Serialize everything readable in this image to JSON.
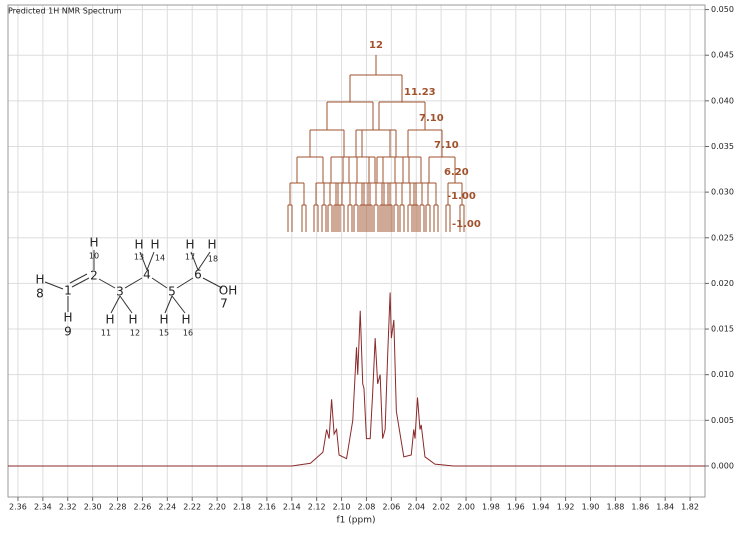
{
  "chart_data": {
    "type": "line",
    "title": "Predicted 1H NMR Spectrum",
    "x_label": "f1 (ppm)",
    "x": [
      2.368,
      2.14,
      2.125,
      2.115,
      2.112,
      2.11,
      2.108,
      2.106,
      2.104,
      2.102,
      2.096,
      2.091,
      2.088,
      2.087,
      2.085,
      2.083,
      2.082,
      2.08,
      2.077,
      2.075,
      2.073,
      2.071,
      2.069,
      2.067,
      2.065,
      2.063,
      2.061,
      2.06,
      2.058,
      2.056,
      2.05,
      2.044,
      2.042,
      2.041,
      2.039,
      2.037,
      2.036,
      2.033,
      2.025,
      2.01,
      1.808
    ],
    "series": [
      {
        "color": "#8b2a2a",
        "values": [
          0,
          0,
          0.0003,
          0.0015,
          0.004,
          0.003,
          0.0073,
          0.0035,
          0.004,
          0.0012,
          0.0008,
          0.005,
          0.013,
          0.01,
          0.017,
          0.009,
          0.0085,
          0.003,
          0.003,
          0.008,
          0.014,
          0.009,
          0.01,
          0.003,
          0.004,
          0.012,
          0.019,
          0.014,
          0.016,
          0.006,
          0.001,
          0.0012,
          0.004,
          0.003,
          0.0075,
          0.004,
          0.0045,
          0.001,
          0.0002,
          0,
          0
        ]
      }
    ],
    "xlim": [
      2.368,
      1.808
    ],
    "ylim": [
      -0.0034,
      0.0505
    ],
    "xticks": [
      2.36,
      2.34,
      2.32,
      {
        "value": 2.3,
        "label": "2.30"
      },
      2.28,
      2.26,
      2.24,
      2.22,
      {
        "value": 2.2,
        "label": "2.20"
      },
      2.18,
      2.16,
      2.14,
      2.12,
      {
        "value": 2.1,
        "label": "2.10"
      },
      2.08,
      2.06,
      2.04,
      2.02,
      {
        "value": 2.0,
        "label": "2.00"
      },
      1.98,
      1.96,
      1.94,
      1.92,
      {
        "value": 1.9,
        "label": "1.90"
      },
      1.88,
      1.86,
      1.84,
      1.82
    ],
    "yticks": [
      {
        "value": 0,
        "label": "0.000"
      },
      {
        "value": 0.005,
        "label": "0.005"
      },
      {
        "value": 0.01,
        "label": "0.010"
      },
      {
        "value": 0.015,
        "label": "0.015"
      },
      {
        "value": 0.02,
        "label": "0.020"
      },
      {
        "value": 0.025,
        "label": "0.025"
      },
      {
        "value": 0.03,
        "label": "0.030"
      },
      {
        "value": 0.035,
        "label": "0.035"
      },
      {
        "value": 0.04,
        "label": "0.040"
      },
      {
        "value": 0.045,
        "label": "0.045"
      },
      {
        "value": 0.05,
        "label": "0.050"
      }
    ],
    "grid": true,
    "multiplet_labels": [
      "12",
      "11.23",
      "7.10",
      "7.10",
      "6.20",
      "-1.00",
      "-1.00"
    ]
  },
  "molecule": {
    "labels": [
      "H",
      "10",
      "H",
      "13",
      "H",
      "14",
      "H",
      "17",
      "H",
      "18",
      "H",
      "8",
      "1",
      "2",
      "3",
      "4",
      "5",
      "6",
      "OH",
      "7",
      "H",
      "9",
      "H",
      "11",
      "H",
      "12",
      "H",
      "15",
      "H",
      "16"
    ]
  }
}
